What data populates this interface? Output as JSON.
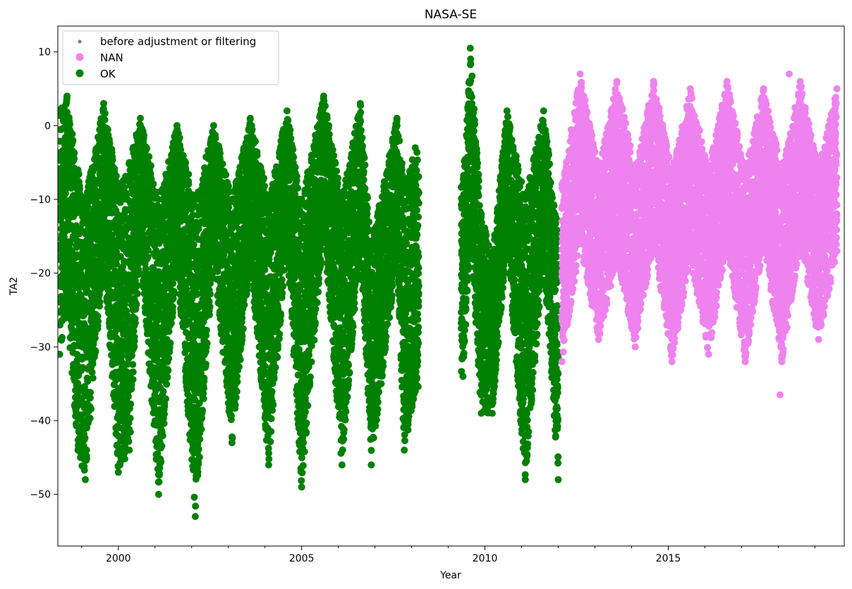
{
  "chart_data": {
    "type": "scatter",
    "title": "NASA-SE",
    "xlabel": "Year",
    "ylabel": "TA2",
    "xlim": [
      1998.35,
      2019.8
    ],
    "ylim": [
      -57,
      13.5
    ],
    "x_ticks": [
      2000,
      2005,
      2010,
      2015
    ],
    "x_minor_ticks": [
      1999,
      2001,
      2002,
      2003,
      2004,
      2006,
      2007,
      2008,
      2009,
      2011,
      2012,
      2013,
      2014,
      2016,
      2017,
      2018,
      2019
    ],
    "y_ticks": [
      10,
      0,
      -10,
      -20,
      -30,
      -40,
      -50
    ],
    "grid": false,
    "legend": {
      "placement": "upper-left",
      "entries": [
        {
          "label": "before adjustment or filtering",
          "color": "#808080",
          "marker": "small-dot"
        },
        {
          "label": "NAN",
          "color": "#ee82ee",
          "marker": "dot"
        },
        {
          "label": "OK",
          "color": "#008000",
          "marker": "dot"
        }
      ]
    },
    "series": [
      {
        "name": "OK",
        "color": "#008000",
        "seasonal_envelope": [
          {
            "x": 1998.4,
            "y": [
              -31,
              2
            ]
          },
          {
            "x": 1998.6,
            "y": [
              -25,
              4
            ]
          },
          {
            "x": 1998.9,
            "y": [
              -44,
              -6
            ]
          },
          {
            "x": 1999.1,
            "y": [
              -48,
              -10
            ]
          },
          {
            "x": 1999.6,
            "y": [
              -18,
              3
            ]
          },
          {
            "x": 2000.0,
            "y": [
              -47,
              -8
            ]
          },
          {
            "x": 2000.3,
            "y": [
              -44,
              -5
            ]
          },
          {
            "x": 2000.6,
            "y": [
              -16,
              1
            ]
          },
          {
            "x": 2001.1,
            "y": [
              -50,
              -10
            ]
          },
          {
            "x": 2001.6,
            "y": [
              -18,
              0
            ]
          },
          {
            "x": 2002.1,
            "y": [
              -53,
              -10
            ]
          },
          {
            "x": 2002.6,
            "y": [
              -18,
              0
            ]
          },
          {
            "x": 2003.1,
            "y": [
              -43,
              -10
            ]
          },
          {
            "x": 2003.6,
            "y": [
              -18,
              1
            ]
          },
          {
            "x": 2004.1,
            "y": [
              -46,
              -10
            ]
          },
          {
            "x": 2004.6,
            "y": [
              -16,
              2
            ]
          },
          {
            "x": 2005.0,
            "y": [
              -49,
              -10
            ]
          },
          {
            "x": 2005.6,
            "y": [
              -14,
              4
            ]
          },
          {
            "x": 2006.1,
            "y": [
              -46,
              -10
            ]
          },
          {
            "x": 2006.6,
            "y": [
              -16,
              3
            ]
          },
          {
            "x": 2006.9,
            "y": [
              -46,
              -16
            ]
          },
          {
            "x": 2007.6,
            "y": [
              -18,
              1
            ]
          },
          {
            "x": 2007.8,
            "y": [
              -44,
              -8
            ]
          },
          {
            "x": 2008.1,
            "y": [
              -36,
              -3
            ]
          },
          {
            "x": 2009.4,
            "y": [
              -34,
              -8
            ]
          },
          {
            "x": 2009.6,
            "y": [
              -15,
              10.5
            ]
          },
          {
            "x": 2009.9,
            "y": [
              -39,
              -12
            ]
          },
          {
            "x": 2010.2,
            "y": [
              -39,
              -18
            ]
          },
          {
            "x": 2010.6,
            "y": [
              -16,
              2
            ]
          },
          {
            "x": 2011.1,
            "y": [
              -48,
              -10
            ]
          },
          {
            "x": 2011.6,
            "y": [
              -18,
              2
            ]
          },
          {
            "x": 2012.0,
            "y": [
              -48,
              -15
            ]
          }
        ]
      },
      {
        "name": "NAN",
        "color": "#ee82ee",
        "seasonal_envelope": [
          {
            "x": 2012.1,
            "y": [
              -32,
              -8
            ]
          },
          {
            "x": 2012.6,
            "y": [
              -16,
              7
            ]
          },
          {
            "x": 2013.1,
            "y": [
              -29,
              -6
            ]
          },
          {
            "x": 2013.6,
            "y": [
              -18,
              6
            ]
          },
          {
            "x": 2014.1,
            "y": [
              -30,
              -6
            ]
          },
          {
            "x": 2014.6,
            "y": [
              -16,
              6
            ]
          },
          {
            "x": 2015.1,
            "y": [
              -32,
              -6
            ]
          },
          {
            "x": 2015.6,
            "y": [
              -18,
              5
            ]
          },
          {
            "x": 2016.1,
            "y": [
              -31,
              -6
            ]
          },
          {
            "x": 2016.6,
            "y": [
              -16,
              6
            ]
          },
          {
            "x": 2017.1,
            "y": [
              -32,
              -6
            ]
          },
          {
            "x": 2017.6,
            "y": [
              -16,
              5
            ]
          },
          {
            "x": 2018.1,
            "y": [
              -32,
              -6
            ]
          },
          {
            "x": 2018.6,
            "y": [
              -16,
              6
            ]
          },
          {
            "x": 2019.1,
            "y": [
              -29,
              -6
            ]
          },
          {
            "x": 2019.6,
            "y": [
              -17,
              5
            ]
          }
        ],
        "outliers": [
          {
            "x": 2018.3,
            "y": 7
          },
          {
            "x": 2018.05,
            "y": -36.5
          }
        ]
      }
    ]
  }
}
